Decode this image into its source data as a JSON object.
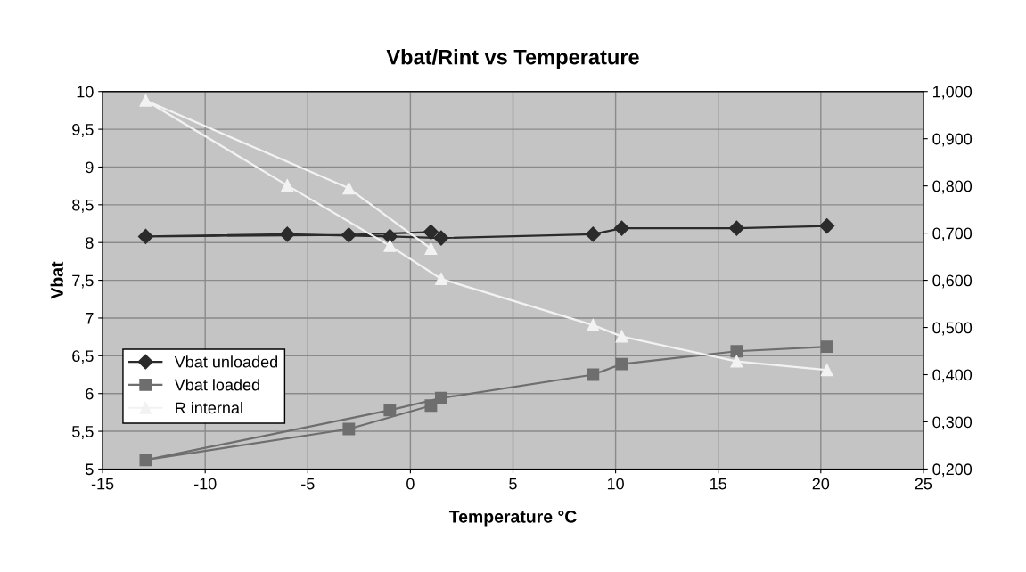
{
  "chart_data": {
    "type": "line",
    "title": "Vbat/Rint vs Temperature",
    "xlabel": "Temperature °C",
    "ylabel": "Vbat",
    "series": [
      {
        "name": "Vbat unloaded",
        "color": "#2b2b2b",
        "marker": "diamond",
        "x": [
          1.0,
          -3.0,
          -12.9,
          -6.0,
          -1.0,
          1.5,
          8.9,
          10.3,
          15.9,
          20.3
        ],
        "values": [
          8.14,
          8.1,
          8.08,
          8.11,
          8.08,
          8.06,
          8.11,
          8.19,
          8.19,
          8.22
        ]
      },
      {
        "name": "Vbat loaded",
        "color": "#6e6e6e",
        "marker": "square",
        "x": [
          1.0,
          -3.0,
          -12.9,
          -1.0,
          1.5,
          8.9,
          10.3,
          15.9,
          20.3
        ],
        "values": [
          5.84,
          5.53,
          5.12,
          5.78,
          5.94,
          6.25,
          6.39,
          6.56,
          6.62
        ]
      },
      {
        "name": "R internal",
        "color": "#f2f2f2",
        "marker": "triangle",
        "axis": "y2",
        "x": [
          1.0,
          -3.0,
          -12.9,
          -6.0,
          -1.0,
          1.5,
          8.9,
          10.3,
          15.9,
          20.3
        ],
        "values": [
          0.667,
          0.795,
          0.981,
          0.801,
          0.673,
          0.603,
          0.505,
          0.481,
          0.428,
          0.41
        ]
      }
    ],
    "xlim": [
      -15,
      25
    ],
    "xticks": [
      -15,
      -10,
      -5,
      0,
      5,
      10,
      15,
      20,
      25
    ],
    "ylim": [
      5,
      10
    ],
    "yticks": [
      5,
      {
        "value": 5.5,
        "label": "5,5"
      },
      6,
      {
        "value": 6.5,
        "label": "6,5"
      },
      7,
      {
        "value": 7.5,
        "label": "7,5"
      },
      8,
      {
        "value": 8.5,
        "label": "8,5"
      },
      9,
      {
        "value": 9.5,
        "label": "9,5"
      },
      10
    ],
    "y2lim": [
      0.2,
      1.0
    ],
    "y2ticks": [
      {
        "value": 0.2,
        "label": "0,200"
      },
      {
        "value": 0.3,
        "label": "0,300"
      },
      {
        "value": 0.4,
        "label": "0,400"
      },
      {
        "value": 0.5,
        "label": "0,500"
      },
      {
        "value": 0.6,
        "label": "0,600"
      },
      {
        "value": 0.7,
        "label": "0,700"
      },
      {
        "value": 0.8,
        "label": "0,800"
      },
      {
        "value": 0.9,
        "label": "0,900"
      },
      {
        "value": 1.0,
        "label": "1,000"
      }
    ],
    "grid": true,
    "legend": "bottom left",
    "line_style": "solid"
  }
}
